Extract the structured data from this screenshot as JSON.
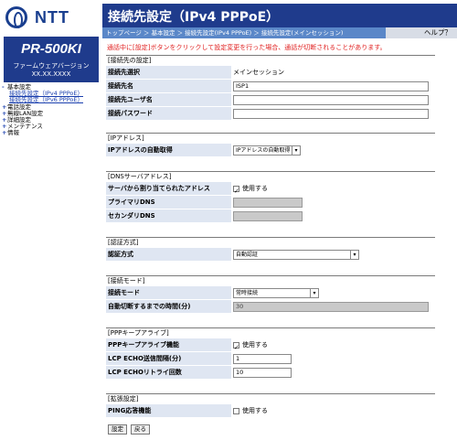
{
  "logo": {
    "text": "NTT"
  },
  "model": {
    "name": "PR-500KI",
    "fw_label": "ファームウェアバージョン",
    "fw_version": "XX.XX.XXXX"
  },
  "nav": {
    "basic": "基本設定",
    "sub1": "接続先設定（IPv4 PPPoE）",
    "sub2": "接続先設定（IPv6 PPPoE）",
    "items": [
      "電話設定",
      "無線LAN設定",
      "詳細設定",
      "メンテナンス",
      "情報"
    ]
  },
  "header": {
    "title": "接続先設定（IPv4 PPPoE）"
  },
  "breadcrumb": "トップページ ＞ 基本設定 ＞ 接続先設定(IPv4 PPPoE) ＞ 接続先設定(メインセッション)",
  "help": "ヘルプ？",
  "warning": "通話中に[設定]ボタンをクリックして設定変更を行った場合、通話が切断されることがあります。",
  "sections": {
    "conn": {
      "title": "[接続先の設定]",
      "select_label": "接続先選択",
      "select_value": "メインセッション",
      "name_label": "接続先名",
      "name_value": "ISP1",
      "user_label": "接続先ユーザ名",
      "user_value": "",
      "pass_label": "接続パスワード",
      "pass_value": ""
    },
    "ip": {
      "title": "[IPアドレス]",
      "auto_label": "IPアドレスの自動取得",
      "auto_value": "IPアドレスの自動取得"
    },
    "dns": {
      "title": "[DNSサーバアドレス]",
      "assigned_label": "サーバから割り当てられたアドレス",
      "assigned_check": "使用する",
      "primary_label": "プライマリDNS",
      "secondary_label": "セカンダリDNS"
    },
    "auth": {
      "title": "[認証方式]",
      "method_label": "認証方式",
      "method_value": "自動認証"
    },
    "mode": {
      "title": "[接続モード]",
      "mode_label": "接続モード",
      "mode_value": "常時接続",
      "timeout_label": "自動切断するまでの時間(分)",
      "timeout_value": "30"
    },
    "ppp": {
      "title": "[PPPキープアライブ]",
      "func_label": "PPPキープアライブ機能",
      "func_check": "使用する",
      "echo_label": "LCP ECHO送信間隔(分)",
      "echo_value": "1",
      "retry_label": "LCP ECHOリトライ回数",
      "retry_value": "10"
    },
    "ext": {
      "title": "[拡張設定]",
      "ping_label": "PING応答機能",
      "ping_check": "使用する"
    }
  },
  "buttons": {
    "set": "設定",
    "back": "戻る"
  }
}
